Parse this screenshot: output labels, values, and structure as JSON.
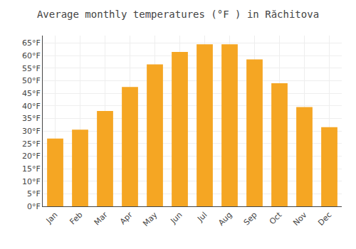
{
  "chart_data": {
    "type": "bar",
    "title": "Average monthly temperatures (°F ) in Răchitova",
    "categories": [
      "Jan",
      "Feb",
      "Mar",
      "Apr",
      "May",
      "Jun",
      "Jul",
      "Aug",
      "Sep",
      "Oct",
      "Nov",
      "Dec"
    ],
    "values": [
      27,
      30.5,
      38,
      47.5,
      56.5,
      61.5,
      64.5,
      64.5,
      58.5,
      49,
      39.5,
      31.5
    ],
    "color": "#F5A623",
    "ylim": [
      0,
      68
    ],
    "yticks": [
      {
        "value": 0,
        "label": "0°F"
      },
      {
        "value": 5,
        "label": "5°F"
      },
      {
        "value": 10,
        "label": "10°F"
      },
      {
        "value": 15,
        "label": "15°F"
      },
      {
        "value": 20,
        "label": "20°F"
      },
      {
        "value": 25,
        "label": "25°F"
      },
      {
        "value": 30,
        "label": "30°F"
      },
      {
        "value": 35,
        "label": "35°F"
      },
      {
        "value": 40,
        "label": "40°F"
      },
      {
        "value": 45,
        "label": "45°F"
      },
      {
        "value": 50,
        "label": "50°F"
      },
      {
        "value": 55,
        "label": "55°F"
      },
      {
        "value": 60,
        "label": "60°F"
      },
      {
        "value": 65,
        "label": "65°F"
      }
    ],
    "grid": true
  }
}
